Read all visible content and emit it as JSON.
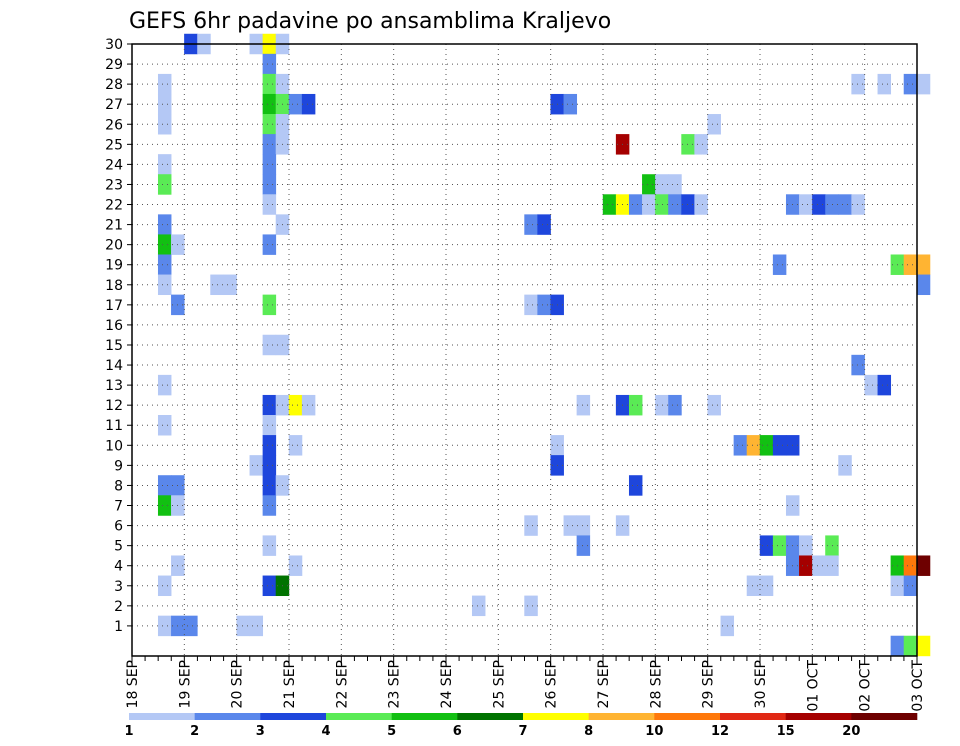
{
  "chart_data": {
    "type": "heatmap",
    "title": "GEFS 6hr padavine po ansamblima Kraljevo",
    "xlabel": "",
    "ylabel": "",
    "x_ticks": [
      "18 SEP",
      "19 SEP",
      "20 SEP",
      "21 SEP",
      "22 SEP",
      "23 SEP",
      "24 SEP",
      "25 SEP",
      "26 SEP",
      "27 SEP",
      "28 SEP",
      "29 SEP",
      "30 SEP",
      "01 OCT",
      "02 OCT",
      "03 OCT"
    ],
    "x_range_days": [
      0,
      15
    ],
    "time_step_hours": 6,
    "y_ticks": [
      1,
      2,
      3,
      4,
      5,
      6,
      7,
      8,
      9,
      10,
      11,
      12,
      13,
      14,
      15,
      16,
      17,
      18,
      19,
      20,
      21,
      22,
      23,
      24,
      25,
      26,
      27,
      28,
      29,
      30
    ],
    "y_range": [
      0,
      30
    ],
    "grid": "dotted",
    "legend": {
      "placement": "bottom",
      "labels": [
        "1",
        "2",
        "3",
        "4",
        "5",
        "6",
        "7",
        "8",
        "10",
        "12",
        "15",
        "20"
      ],
      "colors": [
        "#b4c8f5",
        "#5a87eb",
        "#1e46dc",
        "#5aeb55",
        "#12c012",
        "#007300",
        "#ffff00",
        "#ffb432",
        "#ff780a",
        "#e12814",
        "#a50000",
        "#6e0000"
      ]
    },
    "series": [
      {
        "member": 30,
        "cells": [
          [
            4,
            3
          ],
          [
            5,
            1
          ],
          [
            9,
            1
          ],
          [
            10,
            7
          ],
          [
            11,
            1
          ]
        ]
      },
      {
        "member": 29,
        "cells": [
          [
            10,
            2
          ]
        ]
      },
      {
        "member": 28,
        "cells": [
          [
            2,
            1
          ],
          [
            10,
            4
          ],
          [
            11,
            1
          ],
          [
            55,
            1
          ],
          [
            57,
            1
          ],
          [
            59,
            2
          ],
          [
            60,
            1
          ]
        ]
      },
      {
        "member": 27,
        "cells": [
          [
            2,
            1
          ],
          [
            10,
            5
          ],
          [
            11,
            4
          ],
          [
            12,
            2
          ],
          [
            13,
            3
          ],
          [
            32,
            3
          ],
          [
            33,
            2
          ]
        ]
      },
      {
        "member": 26,
        "cells": [
          [
            2,
            1
          ],
          [
            10,
            4
          ],
          [
            11,
            1
          ],
          [
            44,
            1
          ]
        ]
      },
      {
        "member": 25,
        "cells": [
          [
            10,
            2
          ],
          [
            11,
            1
          ],
          [
            37,
            11
          ],
          [
            42,
            4
          ],
          [
            43,
            1
          ]
        ]
      },
      {
        "member": 24,
        "cells": [
          [
            2,
            1
          ],
          [
            10,
            2
          ]
        ]
      },
      {
        "member": 23,
        "cells": [
          [
            2,
            4
          ],
          [
            10,
            2
          ],
          [
            39,
            5
          ],
          [
            40,
            1
          ],
          [
            41,
            1
          ]
        ]
      },
      {
        "member": 22,
        "cells": [
          [
            10,
            1
          ],
          [
            36,
            5
          ],
          [
            37,
            7
          ],
          [
            38,
            2
          ],
          [
            39,
            1
          ],
          [
            40,
            4
          ],
          [
            41,
            2
          ],
          [
            42,
            3
          ],
          [
            43,
            1
          ],
          [
            50,
            2
          ],
          [
            51,
            1
          ],
          [
            52,
            3
          ],
          [
            53,
            2
          ],
          [
            54,
            2
          ],
          [
            55,
            1
          ]
        ]
      },
      {
        "member": 21,
        "cells": [
          [
            2,
            2
          ],
          [
            11,
            1
          ],
          [
            30,
            2
          ],
          [
            31,
            3
          ]
        ]
      },
      {
        "member": 20,
        "cells": [
          [
            2,
            5
          ],
          [
            3,
            1
          ],
          [
            10,
            2
          ]
        ]
      },
      {
        "member": 19,
        "cells": [
          [
            2,
            2
          ],
          [
            49,
            2
          ],
          [
            58,
            4
          ],
          [
            59,
            8
          ],
          [
            60,
            8
          ]
        ]
      },
      {
        "member": 18,
        "cells": [
          [
            2,
            1
          ],
          [
            6,
            1
          ],
          [
            7,
            1
          ],
          [
            60,
            2
          ]
        ]
      },
      {
        "member": 17,
        "cells": [
          [
            3,
            2
          ],
          [
            10,
            4
          ],
          [
            30,
            1
          ],
          [
            31,
            2
          ],
          [
            32,
            3
          ]
        ]
      },
      {
        "member": 14,
        "cells": [
          [
            55,
            2
          ]
        ]
      },
      {
        "member": 15,
        "cells": [
          [
            10,
            1
          ],
          [
            11,
            1
          ]
        ]
      },
      {
        "member": 13,
        "cells": [
          [
            2,
            1
          ],
          [
            56,
            1
          ],
          [
            57,
            3
          ]
        ]
      },
      {
        "member": 12,
        "cells": [
          [
            10,
            3
          ],
          [
            11,
            1
          ],
          [
            12,
            7
          ],
          [
            13,
            1
          ],
          [
            34,
            1
          ],
          [
            37,
            3
          ],
          [
            38,
            4
          ],
          [
            40,
            1
          ],
          [
            41,
            2
          ],
          [
            44,
            1
          ]
        ]
      },
      {
        "member": 11,
        "cells": [
          [
            2,
            1
          ],
          [
            10,
            1
          ]
        ]
      },
      {
        "member": 10,
        "cells": [
          [
            10,
            3
          ],
          [
            12,
            1
          ],
          [
            32,
            1
          ],
          [
            46,
            2
          ],
          [
            47,
            8
          ],
          [
            48,
            5
          ],
          [
            49,
            3
          ],
          [
            50,
            3
          ]
        ]
      },
      {
        "member": 9,
        "cells": [
          [
            9,
            1
          ],
          [
            10,
            3
          ],
          [
            32,
            3
          ],
          [
            54,
            1
          ]
        ]
      },
      {
        "member": 8,
        "cells": [
          [
            2,
            2
          ],
          [
            3,
            2
          ],
          [
            10,
            3
          ],
          [
            11,
            1
          ],
          [
            38,
            3
          ]
        ]
      },
      {
        "member": 7,
        "cells": [
          [
            2,
            5
          ],
          [
            3,
            1
          ],
          [
            10,
            2
          ],
          [
            50,
            1
          ]
        ]
      },
      {
        "member": 6,
        "cells": [
          [
            30,
            1
          ],
          [
            33,
            1
          ],
          [
            34,
            1
          ],
          [
            37,
            1
          ]
        ]
      },
      {
        "member": 5,
        "cells": [
          [
            10,
            1
          ],
          [
            34,
            2
          ],
          [
            48,
            3
          ],
          [
            49,
            4
          ],
          [
            50,
            2
          ],
          [
            51,
            1
          ],
          [
            53,
            4
          ]
        ]
      },
      {
        "member": 4,
        "cells": [
          [
            3,
            1
          ],
          [
            12,
            1
          ],
          [
            50,
            2
          ],
          [
            51,
            11
          ],
          [
            52,
            1
          ],
          [
            53,
            1
          ],
          [
            58,
            5
          ],
          [
            59,
            9
          ],
          [
            60,
            12
          ]
        ]
      },
      {
        "member": 3,
        "cells": [
          [
            2,
            1
          ],
          [
            10,
            3
          ],
          [
            11,
            6
          ],
          [
            47,
            1
          ],
          [
            48,
            1
          ],
          [
            58,
            1
          ],
          [
            59,
            2
          ]
        ]
      },
      {
        "member": 2,
        "cells": [
          [
            26,
            1
          ],
          [
            30,
            1
          ]
        ]
      },
      {
        "member": 1,
        "cells": [
          [
            2,
            1
          ],
          [
            3,
            2
          ],
          [
            4,
            2
          ],
          [
            8,
            1
          ],
          [
            9,
            1
          ],
          [
            45,
            1
          ]
        ]
      },
      {
        "member": 0,
        "cells": [
          [
            58,
            2
          ],
          [
            59,
            4
          ],
          [
            60,
            7
          ]
        ]
      }
    ]
  }
}
